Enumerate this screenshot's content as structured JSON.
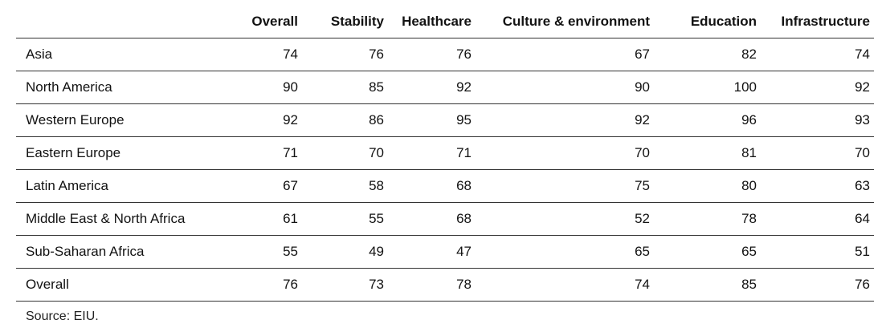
{
  "chart_data": {
    "type": "table",
    "columns": [
      "",
      "Overall",
      "Stability",
      "Healthcare",
      "Culture & environment",
      "Education",
      "Infrastructure"
    ],
    "rows": [
      {
        "label": "Asia",
        "values": [
          74,
          76,
          76,
          67,
          82,
          74
        ]
      },
      {
        "label": "North America",
        "values": [
          90,
          85,
          92,
          90,
          100,
          92
        ]
      },
      {
        "label": "Western Europe",
        "values": [
          92,
          86,
          95,
          92,
          96,
          93
        ]
      },
      {
        "label": "Eastern Europe",
        "values": [
          71,
          70,
          71,
          70,
          81,
          70
        ]
      },
      {
        "label": "Latin America",
        "values": [
          67,
          58,
          68,
          75,
          80,
          63
        ]
      },
      {
        "label": "Middle East & North Africa",
        "values": [
          61,
          55,
          68,
          52,
          78,
          64
        ]
      },
      {
        "label": "Sub-Saharan Africa",
        "values": [
          55,
          49,
          47,
          65,
          65,
          51
        ]
      },
      {
        "label": "Overall",
        "values": [
          76,
          73,
          78,
          74,
          85,
          76
        ]
      }
    ]
  },
  "source": "Source: EIU."
}
